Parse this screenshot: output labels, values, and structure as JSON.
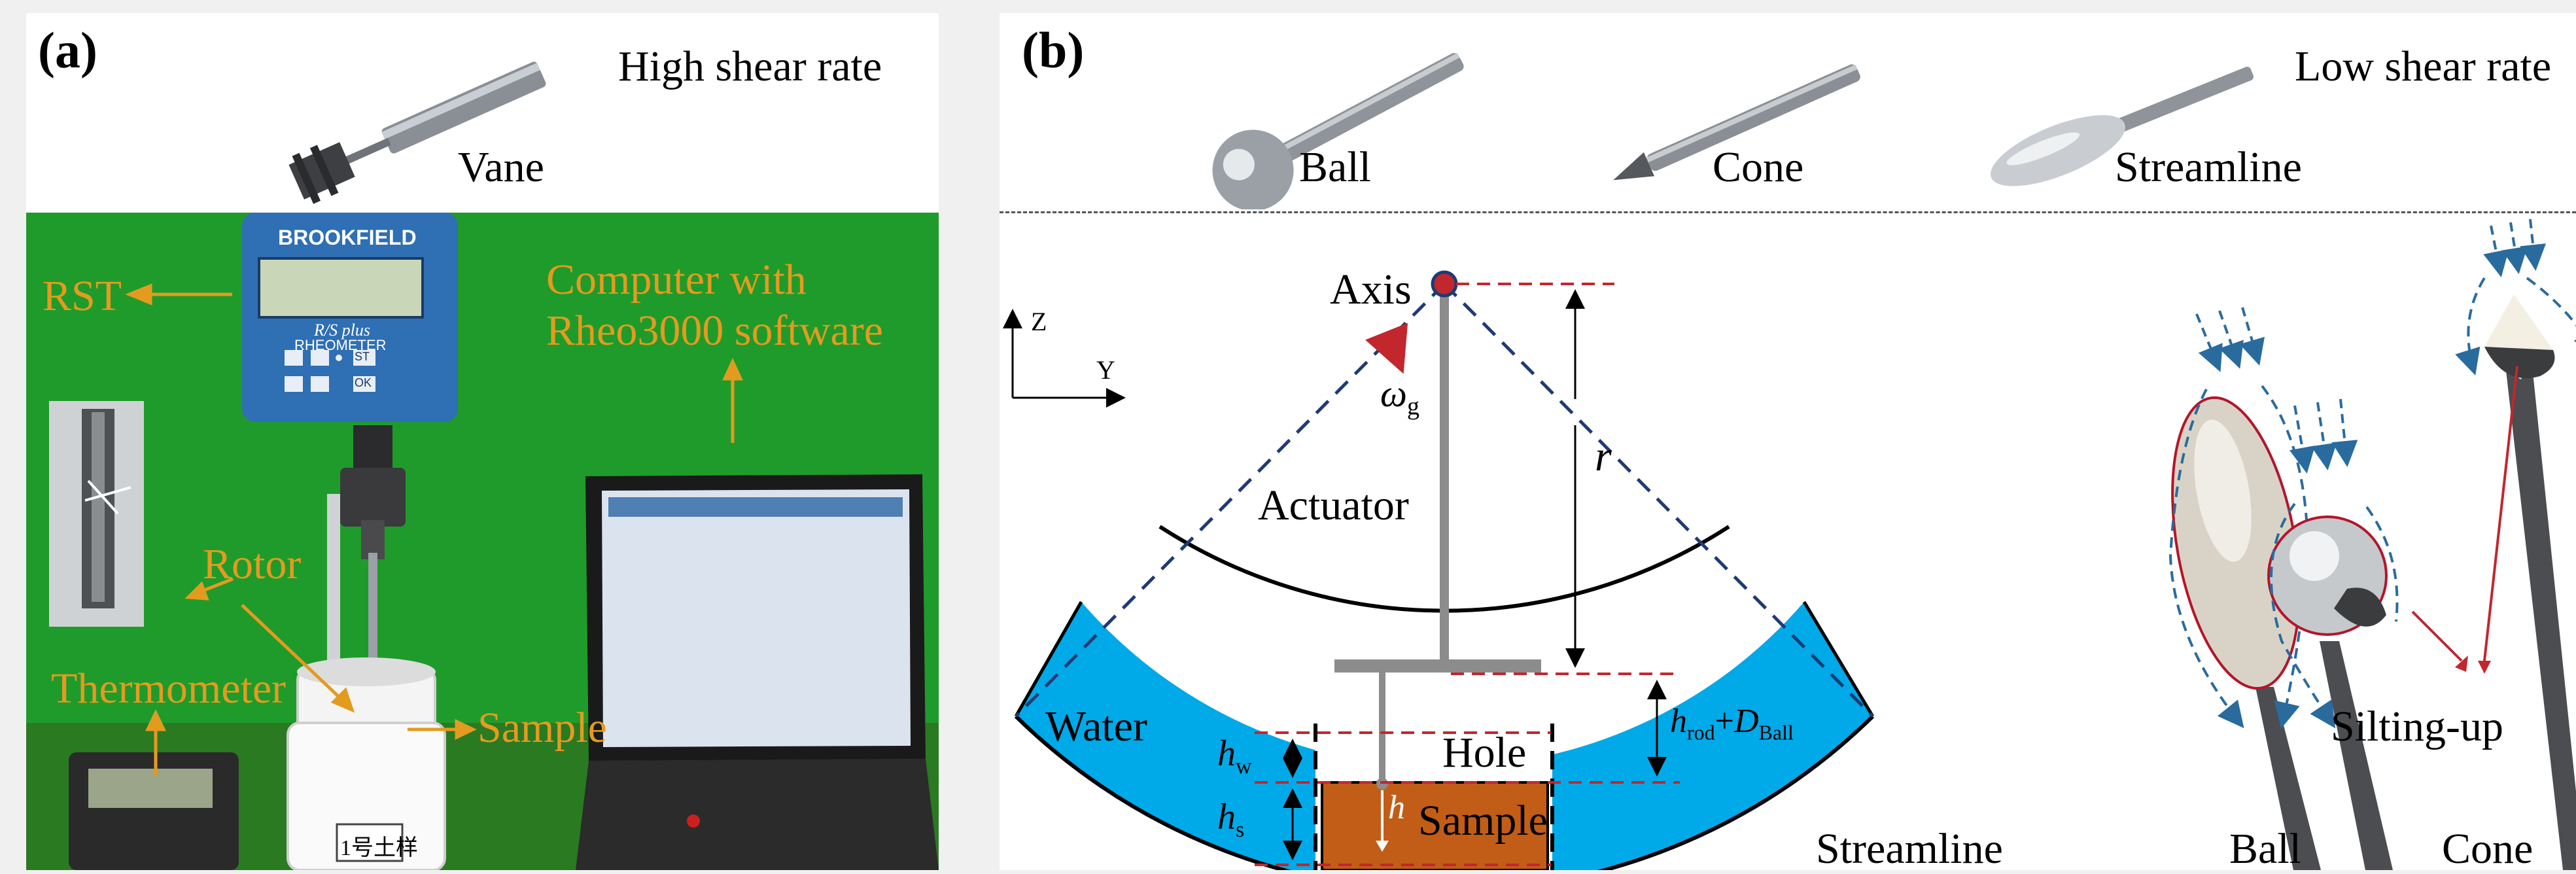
{
  "panel_a": {
    "label": "(a)",
    "title": "High shear rate",
    "rotor_name": "Vane",
    "callouts": {
      "rst": "RST",
      "computer_line1": "Computer with",
      "computer_line2": "Rheo3000 software",
      "rotor": "Rotor",
      "thermometer": "Thermometer",
      "sample": "Sample"
    },
    "device": {
      "brand": "BROOKFIELD",
      "model": "R/S plus",
      "type": "RHEOMETER",
      "key_st": "ST",
      "key_ok": "OK"
    },
    "sample_cup_label": "1号土样"
  },
  "panel_b": {
    "label": "(b)",
    "title": "Low shear rate",
    "rotor_names": [
      "Ball",
      "Cone",
      "Streamline"
    ],
    "diagram": {
      "axis_z": "Z",
      "axis_y": "Y",
      "axis": "Axis",
      "omega": "ω",
      "omega_sub": "g",
      "r": "r",
      "actuator": "Actuator",
      "water": "Water",
      "hole": "Hole",
      "sample": "Sample",
      "h_w": "h",
      "h_w_sub": "w",
      "h_s": "h",
      "h_s_sub": "s",
      "h": "h",
      "h_rod": "h",
      "h_rod_sub": "rod",
      "plus": "+",
      "d_ball": "D",
      "d_ball_sub": "Ball"
    },
    "photo_labels": {
      "streamline": "Streamline",
      "ball": "Ball",
      "cone": "Cone",
      "silting": "Silting-up"
    }
  },
  "colors": {
    "green_screen": "#1e9a2a",
    "water": "#00a9e8",
    "sample_fill": "#c25d17",
    "dash_red": "#c1272d",
    "dash_blue": "#1f3b73",
    "callout_orange": "#e39b1f"
  }
}
